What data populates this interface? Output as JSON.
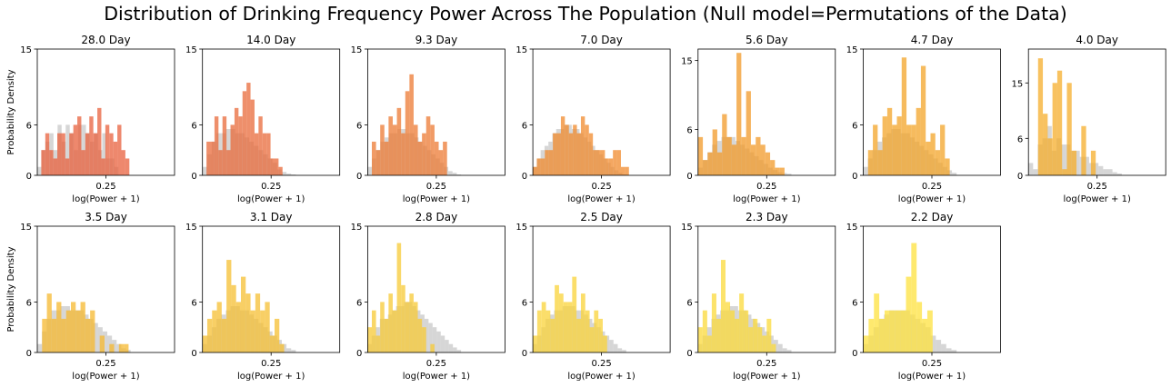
{
  "figure": {
    "title": "Distribution of Drinking Frequency Power Across The Population (Null model=Permutations of the Data)"
  },
  "colors": {
    "null": "#bdbdbd",
    "periods": [
      "#e8603c",
      "#e8693a",
      "#ec7a33",
      "#f08a2c",
      "#f19a28",
      "#f3a428",
      "#f5ae2b",
      "#f5b82f",
      "#f6bf32",
      "#f7c935",
      "#f9d338",
      "#fbda3a",
      "#fde23d"
    ]
  },
  "chart_data": [
    {
      "type": "histogram",
      "title": "28.0 Day",
      "xlabel": "log(Power + 1)",
      "ylabel": "Probability Density",
      "xticks": [
        0.25
      ],
      "yticks": [
        0,
        6,
        15
      ],
      "ylim": [
        0,
        15
      ],
      "series": [
        {
          "name": "",
          "values": [
            1,
            3,
            4,
            5,
            3,
            6,
            4,
            6,
            5,
            3,
            6,
            6,
            5,
            4,
            5,
            3,
            5,
            2,
            2,
            1,
            0,
            0,
            0
          ]
        },
        {
          "name": "",
          "values": [
            0,
            3,
            5,
            3,
            2,
            5,
            5,
            2,
            5,
            6,
            7,
            3,
            5,
            7,
            5,
            8,
            2,
            6,
            5,
            4,
            6,
            3,
            2,
            0
          ]
        }
      ]
    },
    {
      "type": "histogram",
      "title": "14.0 Day",
      "xlabel": "log(Power + 1)",
      "ylabel": "",
      "xticks": [
        0.25
      ],
      "yticks": [
        0,
        6,
        15
      ],
      "ylim": [
        0,
        15
      ],
      "series": [
        {
          "name": "",
          "values": [
            1,
            2.5,
            4,
            5,
            5,
            5.5,
            5.5,
            5,
            5,
            4.5,
            4,
            3.5,
            3,
            2.5,
            2,
            1.5,
            0.7,
            0.4,
            0.2,
            0.1
          ]
        },
        {
          "name": "",
          "values": [
            0,
            4,
            4,
            7,
            3,
            7,
            3,
            6,
            8,
            7,
            10,
            11,
            9,
            5,
            7,
            5,
            5,
            2,
            2,
            1,
            0,
            0,
            0,
            0
          ]
        }
      ]
    },
    {
      "type": "histogram",
      "title": "9.3 Day",
      "xlabel": "log(Power + 1)",
      "ylabel": "",
      "xticks": [
        0.25
      ],
      "yticks": [
        0,
        6,
        15
      ],
      "ylim": [
        0,
        15
      ],
      "series": [
        {
          "name": "",
          "values": [
            1,
            2,
            3,
            4,
            4.5,
            5,
            5,
            5.5,
            5.5,
            5,
            5,
            4.5,
            4,
            3.5,
            3,
            2.5,
            2,
            1.5,
            1,
            0.5,
            0.3,
            0.1
          ]
        },
        {
          "name": "",
          "values": [
            0,
            4,
            3,
            6,
            4,
            7,
            6,
            8,
            5,
            10,
            12,
            6,
            4,
            5,
            7,
            6,
            4,
            3,
            4,
            0,
            0,
            0,
            0
          ]
        }
      ]
    },
    {
      "type": "histogram",
      "title": "7.0 Day",
      "xlabel": "log(Power + 1)",
      "ylabel": "",
      "xticks": [
        0.25
      ],
      "yticks": [
        0,
        6,
        15
      ],
      "ylim": [
        0,
        15
      ],
      "series": [
        {
          "name": "",
          "values": [
            1,
            2,
            3,
            3.5,
            4,
            5,
            5.5,
            5.5,
            6,
            6,
            5.5,
            5.5,
            5,
            4.5,
            4,
            3.5,
            3,
            2.5,
            2,
            1.5,
            1,
            0.6,
            0.3,
            0.1
          ]
        },
        {
          "name": "",
          "values": [
            1,
            2,
            2,
            3,
            3,
            5,
            5,
            7,
            6,
            5,
            6,
            5,
            7,
            6,
            5,
            3,
            3,
            3,
            2,
            2,
            3,
            3,
            1,
            1
          ]
        }
      ]
    },
    {
      "type": "histogram",
      "title": "5.6 Day",
      "xlabel": "log(Power + 1)",
      "ylabel": "",
      "xticks": [
        0.25
      ],
      "yticks": [
        0,
        6,
        15
      ],
      "ylim": [
        0,
        16.5
      ],
      "series": [
        {
          "name": "",
          "values": [
            1,
            2,
            3,
            4,
            4.5,
            5,
            5,
            5,
            4.5,
            4,
            3.5,
            3,
            2.5,
            2,
            1.5,
            1,
            0.7,
            0.4,
            0.3,
            0.2
          ]
        },
        {
          "name": "",
          "values": [
            5,
            2,
            3,
            6,
            3,
            8,
            5,
            4,
            16,
            5,
            11,
            4,
            5,
            4,
            3,
            2,
            1,
            1,
            0,
            0
          ]
        }
      ]
    },
    {
      "type": "histogram",
      "title": "4.7 Day",
      "xlabel": "log(Power + 1)",
      "ylabel": "",
      "xticks": [
        0.25
      ],
      "yticks": [
        0,
        6,
        15
      ],
      "ylim": [
        0,
        15
      ],
      "series": [
        {
          "name": "",
          "values": [
            1,
            2,
            3,
            4,
            4.5,
            5,
            5.5,
            5.5,
            5,
            5,
            4.5,
            4,
            3.5,
            3,
            2.5,
            2,
            1.5,
            1,
            0.6,
            0.3
          ]
        },
        {
          "name": "",
          "values": [
            0,
            3,
            6,
            3,
            7,
            8,
            6,
            7,
            14,
            6,
            6,
            8,
            13,
            4,
            5,
            3,
            6,
            2,
            0,
            0
          ]
        }
      ]
    },
    {
      "type": "histogram",
      "title": "4.0 Day",
      "xlabel": "log(Power + 1)",
      "ylabel": "",
      "xticks": [
        0.25
      ],
      "yticks": [
        0,
        6,
        15
      ],
      "ylim": [
        0,
        20.5
      ],
      "series": [
        {
          "name": "",
          "values": [
            2,
            1,
            5,
            6,
            8,
            4,
            6,
            5,
            5,
            4,
            4,
            3,
            3,
            2,
            2,
            1.5,
            1,
            1,
            0.5,
            0.3
          ]
        },
        {
          "name": "",
          "values": [
            0,
            0,
            19,
            10,
            6,
            15,
            17,
            1,
            15,
            4,
            0,
            8,
            0,
            4,
            0,
            0,
            0,
            0,
            0,
            0
          ]
        }
      ]
    },
    {
      "type": "histogram",
      "title": "3.5 Day",
      "xlabel": "log(Power + 1)",
      "ylabel": "Probability Density",
      "xticks": [
        0.25
      ],
      "yticks": [
        0,
        6,
        15
      ],
      "ylim": [
        0,
        15
      ],
      "series": [
        {
          "name": "",
          "values": [
            1,
            2.5,
            4,
            5,
            5,
            5.5,
            5.5,
            5,
            5,
            5,
            4.5,
            4,
            3.5,
            3,
            2.5,
            2,
            1.5,
            1,
            0.5,
            0.3
          ]
        },
        {
          "name": "",
          "values": [
            0,
            4,
            7,
            4,
            6,
            4,
            5,
            6,
            5,
            6,
            4,
            5,
            0,
            2,
            0,
            1,
            0,
            1,
            1,
            0
          ]
        }
      ]
    },
    {
      "type": "histogram",
      "title": "3.1 Day",
      "xlabel": "log(Power + 1)",
      "ylabel": "",
      "xticks": [
        0.25
      ],
      "yticks": [
        0,
        6,
        15
      ],
      "ylim": [
        0,
        15
      ],
      "series": [
        {
          "name": "",
          "values": [
            1,
            2,
            3,
            4,
            4.5,
            5,
            5.5,
            5.5,
            5,
            5,
            4.5,
            4,
            3.5,
            3,
            2.5,
            2,
            1.5,
            1,
            0.5,
            0.3
          ]
        },
        {
          "name": "",
          "values": [
            2,
            4,
            5,
            6,
            4,
            11,
            8,
            6,
            9,
            7,
            5,
            7,
            5,
            6,
            2,
            4,
            1,
            0,
            0,
            0
          ]
        }
      ]
    },
    {
      "type": "histogram",
      "title": "2.8 Day",
      "xlabel": "log(Power + 1)",
      "ylabel": "",
      "xticks": [
        0.25
      ],
      "yticks": [
        0,
        6,
        15
      ],
      "ylim": [
        0,
        15
      ],
      "series": [
        {
          "name": "",
          "values": [
            1,
            2,
            3,
            4,
            4,
            4.5,
            5,
            5.5,
            5.5,
            6,
            6,
            5.5,
            5,
            4.5,
            4,
            3.5,
            3,
            2.5,
            2,
            1.5,
            1,
            0.6,
            0.3
          ]
        },
        {
          "name": "",
          "values": [
            3,
            5,
            2,
            6,
            4,
            7,
            5,
            13,
            8,
            6,
            7,
            6,
            4,
            3,
            0,
            1,
            0,
            0,
            0,
            0,
            0,
            0,
            0
          ]
        }
      ]
    },
    {
      "type": "histogram",
      "title": "2.5 Day",
      "xlabel": "log(Power + 1)",
      "ylabel": "",
      "xticks": [
        0.25
      ],
      "yticks": [
        0,
        6,
        15
      ],
      "ylim": [
        0,
        15
      ],
      "series": [
        {
          "name": "",
          "values": [
            1,
            2,
            3,
            4,
            4.5,
            5,
            5,
            5.5,
            5.5,
            5.5,
            5,
            5,
            4.5,
            4,
            3.5,
            3,
            2.5,
            2,
            1.5,
            1,
            0.5,
            0.3
          ]
        },
        {
          "name": "",
          "values": [
            2,
            5,
            6,
            5,
            4,
            8,
            7,
            6,
            6,
            9,
            4,
            7,
            5,
            3,
            5,
            4,
            2,
            0,
            0,
            0,
            0,
            0
          ]
        }
      ]
    },
    {
      "type": "histogram",
      "title": "2.3 Day",
      "xlabel": "log(Power + 1)",
      "ylabel": "",
      "xticks": [
        0.25
      ],
      "yticks": [
        0,
        6,
        15
      ],
      "ylim": [
        0,
        15
      ],
      "series": [
        {
          "name": "",
          "values": [
            1,
            2,
            3,
            4,
            4.5,
            5,
            5,
            5.5,
            5.5,
            5,
            5,
            4.5,
            4,
            3.5,
            3,
            2.5,
            2,
            1.5,
            1,
            0.5,
            0.3
          ]
        },
        {
          "name": "",
          "values": [
            3,
            5,
            2,
            7,
            4,
            11,
            6,
            5,
            4,
            7,
            5,
            3,
            4,
            3,
            2,
            4,
            1,
            0,
            0,
            0,
            0
          ]
        }
      ]
    },
    {
      "type": "histogram",
      "title": "2.2 Day",
      "xlabel": "log(Power + 1)",
      "ylabel": "",
      "xticks": [
        0.25
      ],
      "yticks": [
        0,
        6,
        15
      ],
      "ylim": [
        0,
        15
      ],
      "series": [
        {
          "name": "",
          "values": [
            1,
            2,
            3,
            4,
            4.5,
            5,
            5,
            5,
            5,
            4.5,
            4,
            3.5,
            3,
            2,
            1.5,
            1,
            0.5,
            0.3
          ]
        },
        {
          "name": "",
          "values": [
            2,
            4,
            7,
            4,
            5,
            5,
            5,
            5,
            9,
            13,
            6,
            4,
            5,
            0,
            0,
            0,
            0,
            0
          ]
        }
      ]
    }
  ]
}
